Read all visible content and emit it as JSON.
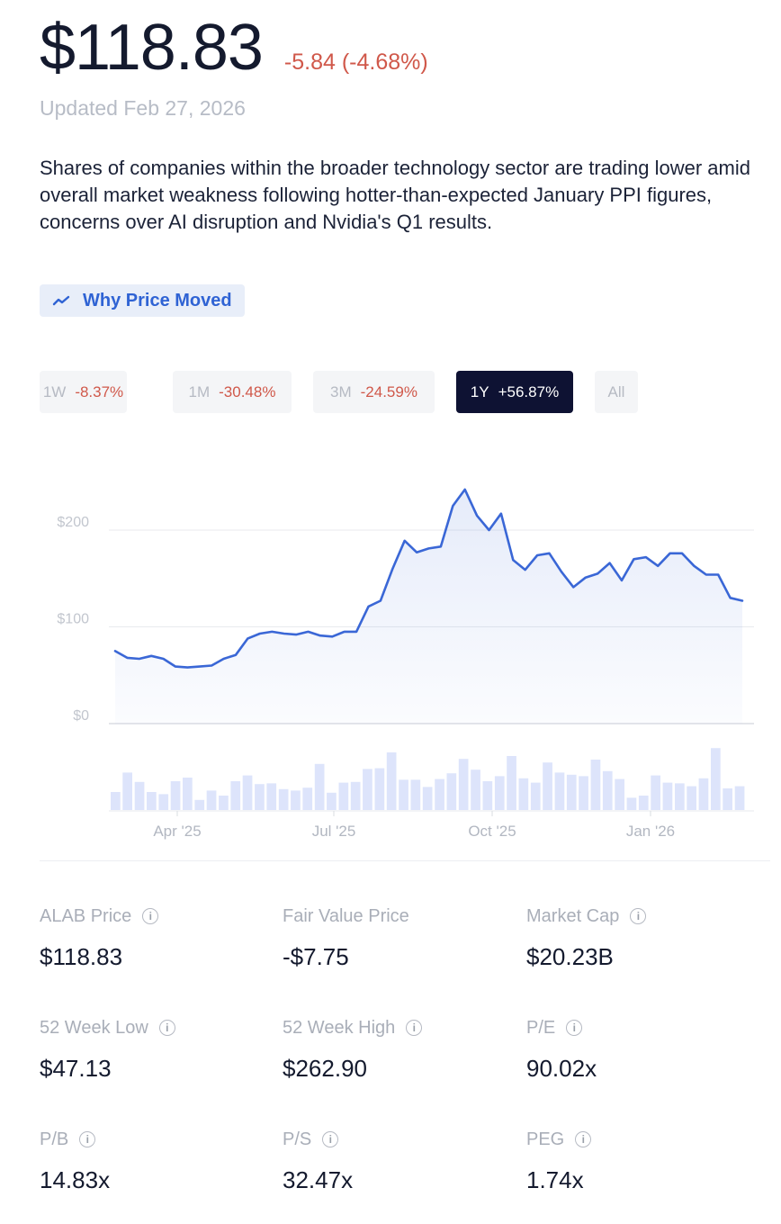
{
  "header": {
    "price": "$118.83",
    "change": "-5.84 (-4.68%)",
    "updated": "Updated Feb 27, 2026"
  },
  "description": "Shares of companies within the broader technology sector are trading lower amid overall market weakness following hotter-than-expected January PPI figures, concerns over AI disruption and Nvidia's Q1 results.",
  "why_button": {
    "label": "Why Price Moved",
    "icon": "trend-line-icon"
  },
  "ranges": [
    {
      "label": "1W",
      "value": "-8.37%"
    },
    {
      "label": "1M",
      "value": "-30.48%"
    },
    {
      "label": "3M",
      "value": "-24.59%"
    },
    {
      "label": "1Y",
      "value": "+56.87%",
      "active": true
    },
    {
      "label": "All",
      "value": ""
    }
  ],
  "colors": {
    "line": "#3a67d6",
    "negative": "#d0584a",
    "active_range_bg": "#0e1233",
    "volume": "#dde4fb"
  },
  "chart_data": {
    "type": "line",
    "title": "",
    "ylabel": "",
    "y_ticks": [
      "$200",
      "$100",
      "$0"
    ],
    "y_tick_values": [
      200,
      100,
      0
    ],
    "ylim": [
      0,
      250
    ],
    "x_ticks": [
      "Apr '25",
      "Jul '25",
      "Oct '25",
      "Jan '26"
    ],
    "grid": true,
    "series": [
      {
        "values": [
          75,
          68,
          67,
          70,
          67,
          59,
          58,
          59,
          60,
          67,
          71,
          88,
          93,
          95,
          93,
          92,
          95,
          91,
          90,
          95,
          95,
          121,
          127,
          160,
          189,
          177,
          181,
          183,
          225,
          242,
          215,
          200,
          217,
          169,
          159,
          174,
          176,
          157,
          141,
          151,
          155,
          166,
          148,
          170,
          172,
          163,
          176,
          176,
          163,
          154,
          154,
          130,
          127
        ]
      }
    ],
    "volume": [
      0.25,
      0.52,
      0.39,
      0.25,
      0.22,
      0.4,
      0.45,
      0.14,
      0.27,
      0.2,
      0.4,
      0.48,
      0.36,
      0.37,
      0.29,
      0.27,
      0.31,
      0.64,
      0.24,
      0.38,
      0.39,
      0.57,
      0.58,
      0.8,
      0.42,
      0.42,
      0.32,
      0.43,
      0.51,
      0.71,
      0.56,
      0.4,
      0.47,
      0.75,
      0.44,
      0.38,
      0.66,
      0.52,
      0.49,
      0.47,
      0.7,
      0.54,
      0.43,
      0.17,
      0.2,
      0.48,
      0.38,
      0.37,
      0.33,
      0.44,
      0.86,
      0.3,
      0.33
    ]
  },
  "stats": [
    {
      "label": "ALAB Price",
      "value": "$118.83",
      "info": true
    },
    {
      "label": "Fair Value Price",
      "value": "-$7.75",
      "info": false
    },
    {
      "label": "Market Cap",
      "value": "$20.23B",
      "info": true
    },
    {
      "label": "52 Week Low",
      "value": "$47.13",
      "info": true
    },
    {
      "label": "52 Week High",
      "value": "$262.90",
      "info": true
    },
    {
      "label": "P/E",
      "value": "90.02x",
      "info": true
    },
    {
      "label": "P/B",
      "value": "14.83x",
      "info": true
    },
    {
      "label": "P/S",
      "value": "32.47x",
      "info": true
    },
    {
      "label": "PEG",
      "value": "1.74x",
      "info": true
    }
  ]
}
